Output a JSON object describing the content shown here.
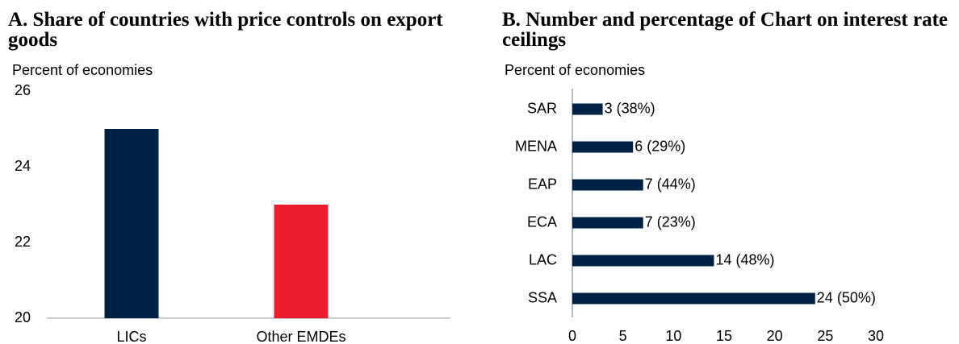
{
  "chart_data": [
    {
      "type": "bar",
      "title": "A. Share of countries with price controls on export goods",
      "y_label": "Percent of economies",
      "categories": [
        "LICs",
        "Other EMDEs"
      ],
      "values": [
        25,
        23
      ],
      "colors": [
        "#002345",
        "#eb1c2d"
      ],
      "ylim": [
        20,
        26
      ],
      "yticks": [
        20,
        22,
        24,
        26
      ]
    },
    {
      "type": "bar",
      "orientation": "horizontal",
      "title": "B. Number and percentage of Chart on interest rate ceilings",
      "y_label": "Percent of economies",
      "categories": [
        "SAR",
        "MENA",
        "EAP",
        "ECA",
        "LAC",
        "SSA"
      ],
      "values": [
        3,
        6,
        7,
        7,
        14,
        24
      ],
      "value_labels": [
        "3 (38%)",
        "6 (29%)",
        "7 (44%)",
        "7 (23%)",
        "14 (48%)",
        "24 (50%)"
      ],
      "color": "#002345",
      "xlim": [
        0,
        30
      ],
      "xticks": [
        0,
        5,
        10,
        15,
        20,
        25,
        30
      ]
    }
  ]
}
